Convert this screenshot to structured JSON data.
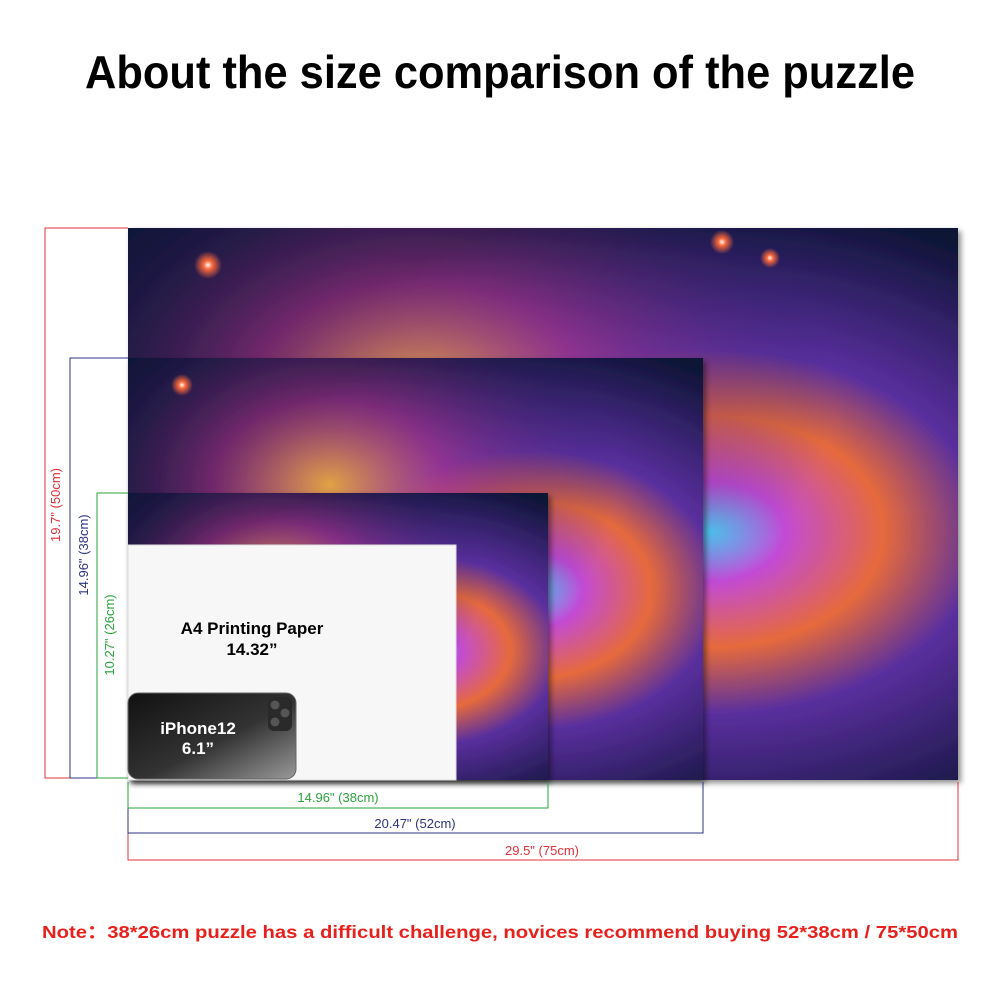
{
  "title": "About the size comparison of the puzzle",
  "heights": [
    "19.7\" (50cm)",
    "14.96\" (38cm)",
    "10.27\" (26cm)"
  ],
  "widths": [
    "29.5\" (75cm)",
    "20.47\" (52cm)",
    "14.96\" (38cm)"
  ],
  "a4": {
    "label": "A4 Printing Paper",
    "size": "14.32”"
  },
  "iphone": {
    "label": "iPhone12",
    "size": "6.1”"
  },
  "note": "Note：38*26cm puzzle has a difficult challenge, novices recommend buying 52*38cm / 75*50cm"
}
